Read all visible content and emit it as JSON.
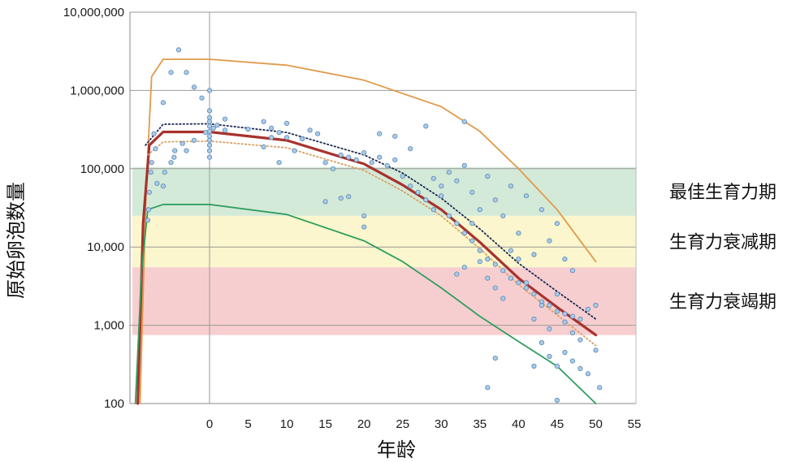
{
  "chart_data": {
    "type": "scatter",
    "title": "",
    "xlabel": "年龄",
    "ylabel": "原始卵泡数量",
    "yscale": "log",
    "xlim": [
      -10,
      55
    ],
    "ylim": [
      100,
      10000000
    ],
    "x_ticks": [
      0,
      5,
      10,
      15,
      20,
      25,
      30,
      35,
      40,
      45,
      50,
      55
    ],
    "y_ticks": [
      {
        "value": 100,
        "label": "100"
      },
      {
        "value": 1000,
        "label": "1,000"
      },
      {
        "value": 10000,
        "label": "10,000"
      },
      {
        "value": 100000,
        "label": "100,000"
      },
      {
        "value": 1000000,
        "label": "1,000,000"
      },
      {
        "value": 10000000,
        "label": "10,000,000"
      }
    ],
    "grid": "horizontal at major ticks; vertical line at x=0",
    "zones": [
      {
        "label": "最佳生育力期",
        "y_from": 25000,
        "y_to": 105000,
        "color": "#cfe8d4"
      },
      {
        "label": "生育力衰减期",
        "y_from": 5500,
        "y_to": 25000,
        "color": "#fbf5c8"
      },
      {
        "label": "生育力衰竭期",
        "y_from": 750,
        "y_to": 5500,
        "color": "#f6c9cb"
      }
    ],
    "curves": [
      {
        "style": "solid",
        "color": "#e09a4a",
        "points": [
          [
            -9,
            100
          ],
          [
            -8.2,
            60000
          ],
          [
            -7.5,
            1500000
          ],
          [
            -6,
            2500000
          ],
          [
            0,
            2500000
          ],
          [
            10,
            2100000
          ],
          [
            20,
            1350000
          ],
          [
            30,
            620000
          ],
          [
            35,
            300000
          ],
          [
            40,
            100000
          ],
          [
            45,
            30000
          ],
          [
            50,
            6500
          ]
        ]
      },
      {
        "style": "solid-thick",
        "color": "#a8322d",
        "points": [
          [
            -9.3,
            100
          ],
          [
            -8.6,
            20000
          ],
          [
            -7.8,
            200000
          ],
          [
            -6,
            295000
          ],
          [
            0,
            295000
          ],
          [
            10,
            230000
          ],
          [
            20,
            115000
          ],
          [
            25,
            62000
          ],
          [
            30,
            30000
          ],
          [
            35,
            11500
          ],
          [
            40,
            4000
          ],
          [
            45,
            1700
          ],
          [
            50,
            750
          ]
        ]
      },
      {
        "style": "dotted",
        "color": "#1b2a55",
        "points": [
          [
            -8.3,
            200000
          ],
          [
            -6,
            370000
          ],
          [
            0,
            375000
          ],
          [
            10,
            290000
          ],
          [
            20,
            150000
          ],
          [
            25,
            88000
          ],
          [
            30,
            42000
          ],
          [
            35,
            17000
          ],
          [
            40,
            6200
          ],
          [
            45,
            2700
          ],
          [
            50,
            1200
          ]
        ]
      },
      {
        "style": "dotted",
        "color": "#d9a060",
        "points": [
          [
            -8.0,
            150000
          ],
          [
            -6,
            220000
          ],
          [
            0,
            225000
          ],
          [
            10,
            185000
          ],
          [
            20,
            95000
          ],
          [
            25,
            52000
          ],
          [
            30,
            25000
          ],
          [
            35,
            9500
          ],
          [
            40,
            3300
          ],
          [
            45,
            1350
          ],
          [
            50,
            550
          ]
        ]
      },
      {
        "style": "solid",
        "color": "#2e9e5e",
        "points": [
          [
            -9.6,
            100
          ],
          [
            -8.8,
            5000
          ],
          [
            -8,
            30000
          ],
          [
            -6,
            35000
          ],
          [
            0,
            35000
          ],
          [
            10,
            26000
          ],
          [
            20,
            12000
          ],
          [
            25,
            6500
          ],
          [
            30,
            3000
          ],
          [
            35,
            1300
          ],
          [
            40,
            620
          ],
          [
            45,
            300
          ],
          [
            50,
            100
          ]
        ]
      }
    ],
    "points": [
      [
        -4,
        3300000
      ],
      [
        -5,
        1700000
      ],
      [
        -3,
        1700000
      ],
      [
        -2,
        1100000
      ],
      [
        -1,
        800000
      ],
      [
        0,
        1000000
      ],
      [
        -6,
        700000
      ],
      [
        -7.2,
        280000
      ],
      [
        -7,
        180000
      ],
      [
        -7.5,
        120000
      ],
      [
        -7.6,
        90000
      ],
      [
        -7.8,
        50000
      ],
      [
        -7.9,
        30000
      ],
      [
        -8,
        22000
      ],
      [
        -6.8,
        65000
      ],
      [
        -6,
        60000
      ],
      [
        -5.8,
        90000
      ],
      [
        -5,
        120000
      ],
      [
        -4.5,
        170000
      ],
      [
        -4.6,
        140000
      ],
      [
        -3.5,
        210000
      ],
      [
        -3,
        170000
      ],
      [
        -2,
        230000
      ],
      [
        0,
        550000
      ],
      [
        0,
        450000
      ],
      [
        0,
        400000
      ],
      [
        0,
        350000
      ],
      [
        0,
        300000
      ],
      [
        0,
        260000
      ],
      [
        0,
        230000
      ],
      [
        0,
        200000
      ],
      [
        0,
        170000
      ],
      [
        0,
        140000
      ],
      [
        0.5,
        330000
      ],
      [
        -0.5,
        290000
      ],
      [
        1,
        360000
      ],
      [
        2,
        430000
      ],
      [
        2,
        310000
      ],
      [
        5,
        320000
      ],
      [
        7,
        400000
      ],
      [
        7,
        190000
      ],
      [
        8,
        330000
      ],
      [
        8,
        250000
      ],
      [
        9,
        290000
      ],
      [
        9,
        120000
      ],
      [
        10,
        380000
      ],
      [
        10,
        250000
      ],
      [
        11,
        170000
      ],
      [
        12,
        240000
      ],
      [
        13,
        310000
      ],
      [
        14,
        280000
      ],
      [
        15,
        120000
      ],
      [
        16,
        100000
      ],
      [
        17,
        150000
      ],
      [
        18,
        140000
      ],
      [
        19,
        130000
      ],
      [
        20,
        160000
      ],
      [
        21,
        120000
      ],
      [
        22,
        140000
      ],
      [
        23,
        110000
      ],
      [
        24,
        130000
      ],
      [
        15,
        38000
      ],
      [
        17,
        42000
      ],
      [
        18,
        44000
      ],
      [
        20,
        25000
      ],
      [
        20,
        18000
      ],
      [
        22,
        280000
      ],
      [
        24,
        260000
      ],
      [
        26,
        180000
      ],
      [
        28,
        350000
      ],
      [
        29,
        75000
      ],
      [
        33,
        400000
      ],
      [
        25,
        80000
      ],
      [
        26,
        60000
      ],
      [
        27,
        50000
      ],
      [
        28,
        40000
      ],
      [
        29,
        30000
      ],
      [
        30,
        45000
      ],
      [
        31,
        25000
      ],
      [
        32,
        20000
      ],
      [
        33,
        15000
      ],
      [
        34,
        12000
      ],
      [
        35,
        9000
      ],
      [
        36,
        7000
      ],
      [
        37,
        6000
      ],
      [
        38,
        5000
      ],
      [
        39,
        4000
      ],
      [
        40,
        3500
      ],
      [
        41,
        3000
      ],
      [
        42,
        2500
      ],
      [
        43,
        2000
      ],
      [
        44,
        1800
      ],
      [
        45,
        1500
      ],
      [
        46,
        1400
      ],
      [
        47,
        1300
      ],
      [
        48,
        1200
      ],
      [
        30,
        60000
      ],
      [
        31,
        90000
      ],
      [
        32,
        70000
      ],
      [
        33,
        110000
      ],
      [
        34,
        50000
      ],
      [
        35,
        30000
      ],
      [
        36,
        80000
      ],
      [
        37,
        40000
      ],
      [
        38,
        25000
      ],
      [
        39,
        60000
      ],
      [
        40,
        15000
      ],
      [
        41,
        45000
      ],
      [
        42,
        8000
      ],
      [
        43,
        30000
      ],
      [
        44,
        12000
      ],
      [
        45,
        20000
      ],
      [
        46,
        7000
      ],
      [
        47,
        5000
      ],
      [
        32,
        4500
      ],
      [
        33,
        5500
      ],
      [
        34,
        20000
      ],
      [
        35,
        6500
      ],
      [
        36,
        4000
      ],
      [
        37,
        3000
      ],
      [
        38,
        2200
      ],
      [
        39,
        9000
      ],
      [
        40,
        7000
      ],
      [
        41,
        3500
      ],
      [
        42,
        1200
      ],
      [
        43,
        1800
      ],
      [
        44,
        900
      ],
      [
        45,
        2500
      ],
      [
        46,
        1100
      ],
      [
        47,
        800
      ],
      [
        48,
        650
      ],
      [
        49,
        1600
      ],
      [
        50,
        1800
      ],
      [
        50,
        480
      ],
      [
        50.5,
        160
      ],
      [
        36,
        160
      ],
      [
        37,
        380
      ],
      [
        42,
        300
      ],
      [
        43,
        600
      ],
      [
        44,
        400
      ],
      [
        45,
        300
      ],
      [
        46,
        450
      ],
      [
        47,
        350
      ],
      [
        48,
        280
      ],
      [
        49,
        240
      ],
      [
        45,
        110
      ]
    ]
  }
}
